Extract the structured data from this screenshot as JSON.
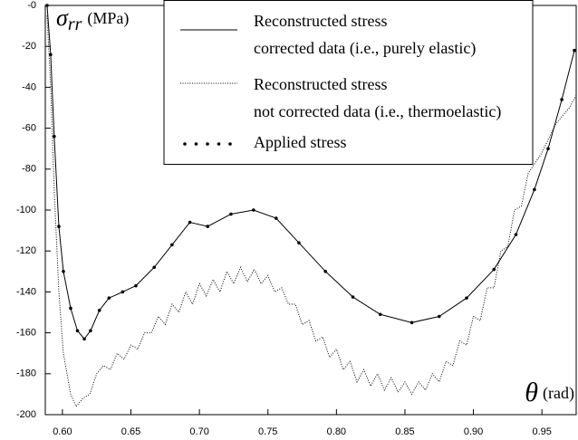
{
  "chart_data": {
    "type": "line",
    "y_label": {
      "symbol": "σ",
      "subscript": "rr",
      "unit": "(MPa)"
    },
    "x_label": {
      "symbol": "θ",
      "unit": "(rad)"
    },
    "xlim": [
      0.5875,
      0.975
    ],
    "xticks": [
      {
        "value": 0.6,
        "label": "0.60"
      },
      {
        "value": 0.65,
        "label": "0.65"
      },
      {
        "value": 0.7,
        "label": "0.70"
      },
      {
        "value": 0.75,
        "label": "0.75"
      },
      {
        "value": 0.8,
        "label": "0.80"
      },
      {
        "value": 0.85,
        "label": "0.85"
      },
      {
        "value": 0.9,
        "label": "0.90"
      },
      {
        "value": 0.95,
        "label": "0.95"
      }
    ],
    "ylim": [
      -200,
      0
    ],
    "yticks": [
      {
        "value": 0,
        "label": "-0"
      },
      -20,
      -40,
      -60,
      -80,
      -100,
      -120,
      -140,
      -160,
      -180,
      -200
    ],
    "legend": "top-right",
    "series": [
      {
        "name": "Reconstructed stress\ncorrected data (i.e., purely elastic)",
        "color": "#000000",
        "style": "solid",
        "x": [
          0.5888,
          0.5914,
          0.594,
          0.5974,
          0.6007,
          0.606,
          0.611,
          0.616,
          0.6205,
          0.627,
          0.634,
          0.644,
          0.6536,
          0.667,
          0.68,
          0.693,
          0.706,
          0.723,
          0.7395,
          0.756,
          0.7726,
          0.792,
          0.812,
          0.832,
          0.855,
          0.875,
          0.895,
          0.915,
          0.931,
          0.9445,
          0.9545,
          0.9645,
          0.9737
        ],
        "values": [
          0,
          -24,
          -64,
          -108,
          -130,
          -148,
          -159,
          -163,
          -159,
          -149,
          -143,
          -140,
          -137,
          -128,
          -117,
          -106,
          -108,
          -102,
          -100,
          -104,
          -116,
          -130,
          -142.5,
          -151,
          -155,
          -152,
          -143,
          -129,
          -112,
          -90,
          -70,
          -46,
          -22
        ]
      },
      {
        "name": "Reconstructed stress\nnot corrected data (i.e., thermoelastic)",
        "color": "#000000",
        "style": "dotted",
        "x": [
          0.5888,
          0.5914,
          0.594,
          0.5974,
          0.6007,
          0.606,
          0.61,
          0.615,
          0.62,
          0.625,
          0.63,
          0.635,
          0.64,
          0.645,
          0.65,
          0.655,
          0.66,
          0.665,
          0.67,
          0.675,
          0.68,
          0.685,
          0.69,
          0.695,
          0.7,
          0.705,
          0.71,
          0.715,
          0.72,
          0.725,
          0.73,
          0.735,
          0.74,
          0.745,
          0.75,
          0.755,
          0.76,
          0.765,
          0.77,
          0.775,
          0.78,
          0.785,
          0.79,
          0.795,
          0.8,
          0.805,
          0.81,
          0.815,
          0.82,
          0.825,
          0.83,
          0.835,
          0.84,
          0.845,
          0.85,
          0.855,
          0.86,
          0.865,
          0.87,
          0.875,
          0.88,
          0.885,
          0.89,
          0.895,
          0.9,
          0.905,
          0.91,
          0.915,
          0.92,
          0.925,
          0.93,
          0.935,
          0.94,
          0.95,
          0.96,
          0.97,
          0.975
        ],
        "values": [
          -5,
          -40,
          -90,
          -140,
          -170,
          -190,
          -196,
          -192,
          -190,
          -180,
          -176,
          -178,
          -170,
          -173,
          -166,
          -168,
          -160,
          -160,
          -152,
          -156,
          -146,
          -150,
          -140,
          -146,
          -136,
          -142,
          -134,
          -140,
          -130,
          -136,
          -128,
          -135,
          -129,
          -136,
          -132,
          -140,
          -138,
          -146,
          -146,
          -156,
          -154,
          -164,
          -162,
          -172,
          -168,
          -178,
          -174,
          -184,
          -178,
          -186,
          -180,
          -188,
          -182,
          -189,
          -184,
          -190,
          -184,
          -188,
          -180,
          -184,
          -174,
          -176,
          -164,
          -166,
          -152,
          -154,
          -138,
          -138,
          -120,
          -118,
          -100,
          -98,
          -82,
          -72,
          -58,
          -50,
          -44
        ]
      },
      {
        "name": "Applied stress",
        "color": "#000000",
        "style": "dots",
        "x": [
          0.5888,
          0.5914,
          0.594,
          0.5974,
          0.6007,
          0.606,
          0.611,
          0.616,
          0.6205,
          0.627,
          0.634,
          0.644,
          0.6536,
          0.667,
          0.68,
          0.693,
          0.706,
          0.723,
          0.7395,
          0.756,
          0.7726,
          0.792,
          0.812,
          0.832,
          0.855,
          0.875,
          0.895,
          0.915,
          0.931,
          0.9445,
          0.9545,
          0.9645,
          0.9737
        ],
        "values": [
          0,
          -24,
          -64,
          -108,
          -130,
          -148,
          -159,
          -163,
          -159,
          -149,
          -143,
          -140,
          -137,
          -128,
          -117,
          -106,
          -108,
          -102,
          -100,
          -104,
          -116,
          -130,
          -142.5,
          -151,
          -155,
          -152,
          -143,
          -129,
          -112,
          -90,
          -70,
          -46,
          -22
        ]
      }
    ]
  }
}
